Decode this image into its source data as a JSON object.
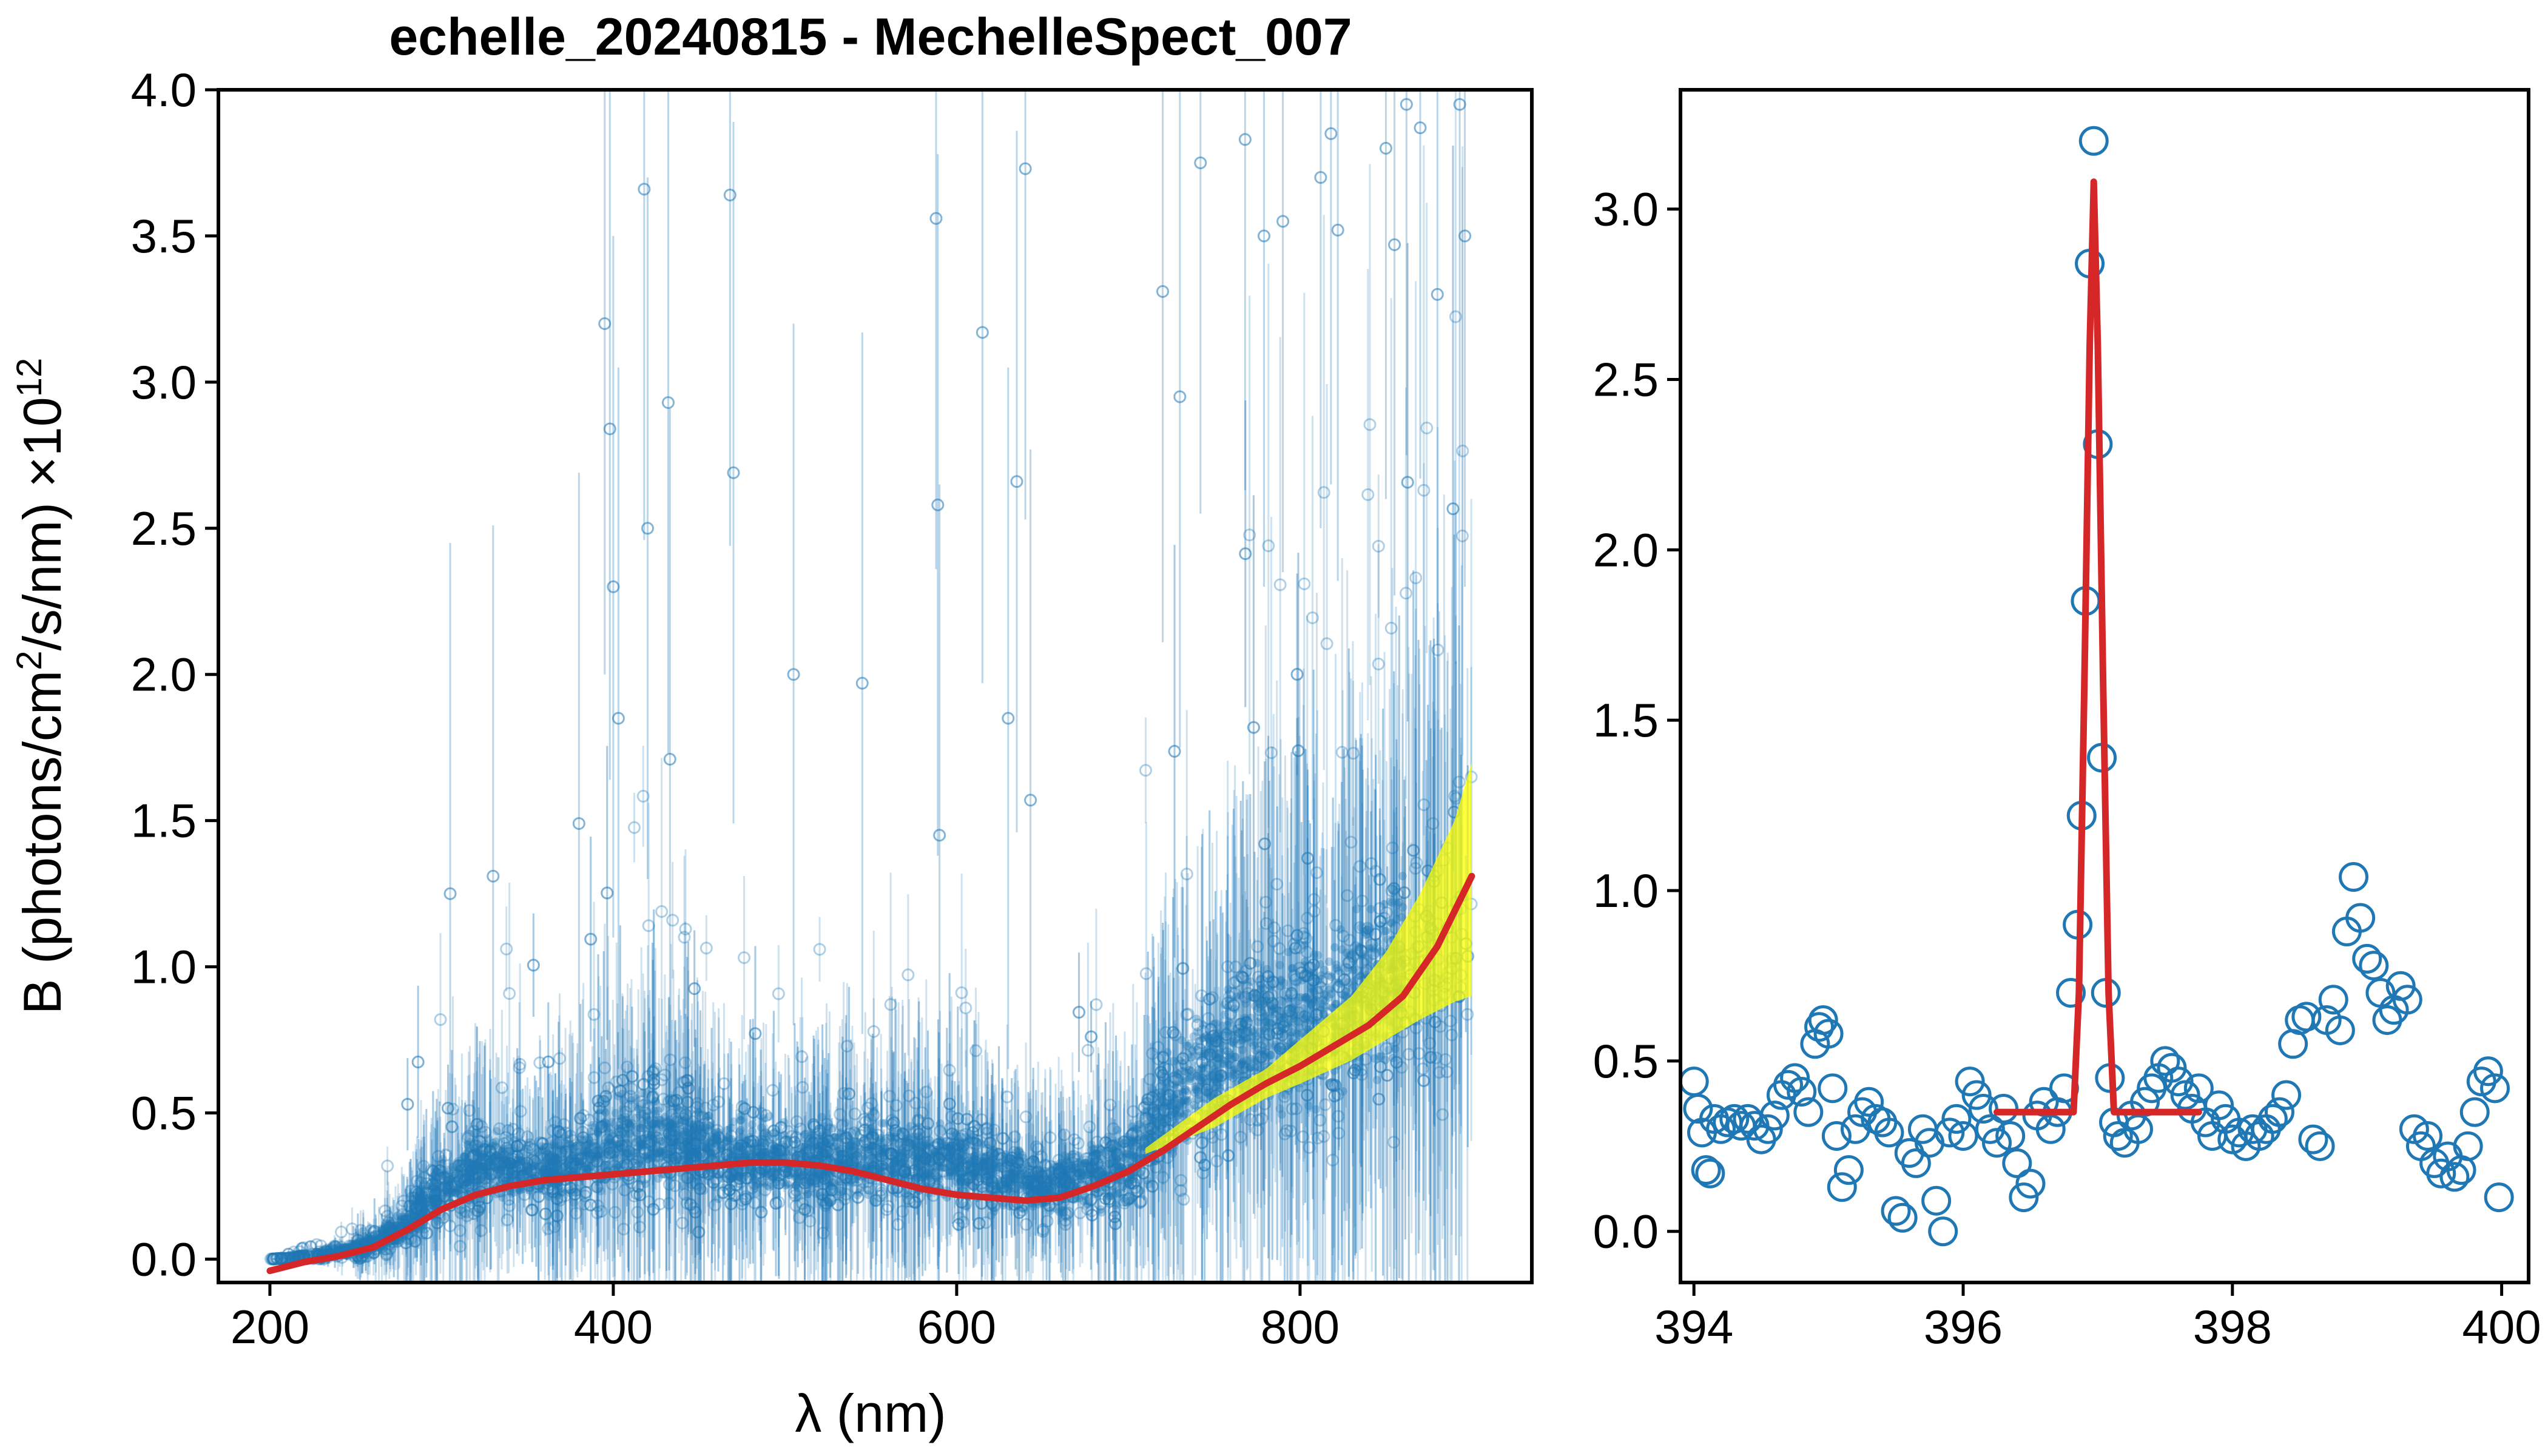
{
  "figure": {
    "title": "echelle_20240815 - MechelleSpect_007"
  },
  "colors": {
    "data": "#1f77b4",
    "fit": "#d62728",
    "band": "#ffff00",
    "axes": "#000000"
  },
  "chart_data": [
    {
      "type": "scatter",
      "title": "echelle_20240815 - MechelleSpect_007",
      "xlabel": "λ (nm)",
      "ylabel": "B (photons/cm²/s/nm) ×10¹²",
      "ylabel_parts": {
        "a": "B (photons/cm",
        "b": "2",
        "c": "/s/nm) ×10",
        "d": "12"
      },
      "xlim": [
        170,
        935
      ],
      "ylim": [
        -0.08,
        4.0
      ],
      "xticks": [
        200,
        400,
        600,
        800
      ],
      "xtick_labels": [
        "200",
        "400",
        "600",
        "800"
      ],
      "yticks": [
        0.0,
        0.5,
        1.0,
        1.5,
        2.0,
        2.5,
        3.0,
        3.5,
        4.0
      ],
      "ytick_labels": [
        "0.0",
        "0.5",
        "1.0",
        "1.5",
        "2.0",
        "2.5",
        "3.0",
        "3.5",
        "4.0"
      ],
      "series": [
        {
          "kind": "measured spectrum with vertical error bars (dense, semi-transparent markers)",
          "color": "#1f77b4",
          "envelope": {
            "x": [
              200,
              230,
              260,
              280,
              300,
              330,
              350,
              380,
              400,
              430,
              450,
              500,
              550,
              600,
              650,
              700,
              720,
              750,
              780,
              800,
              830,
              860,
              880,
              900
            ],
            "median": [
              0.0,
              0.01,
              0.05,
              0.12,
              0.25,
              0.32,
              0.3,
              0.33,
              0.4,
              0.42,
              0.38,
              0.33,
              0.35,
              0.33,
              0.25,
              0.32,
              0.5,
              0.65,
              0.78,
              0.8,
              0.88,
              1.0,
              1.1,
              1.2
            ],
            "spread": [
              0.0,
              0.02,
              0.08,
              0.15,
              0.25,
              0.3,
              0.22,
              0.3,
              0.38,
              0.4,
              0.32,
              0.28,
              0.32,
              0.3,
              0.22,
              0.32,
              0.45,
              0.55,
              0.65,
              0.7,
              0.75,
              0.8,
              0.85,
              0.9
            ]
          },
          "outliers": [
            [
              305,
              1.25
            ],
            [
              330,
              1.31
            ],
            [
              380,
              1.49
            ],
            [
              395,
              3.2
            ],
            [
              398,
              2.84
            ],
            [
              400,
              2.3
            ],
            [
              403,
              1.85
            ],
            [
              418,
              3.66
            ],
            [
              420,
              2.5
            ],
            [
              432,
              2.93
            ],
            [
              433,
              1.71
            ],
            [
              468,
              3.64
            ],
            [
              470,
              2.69
            ],
            [
              505,
              2.0
            ],
            [
              545,
              1.97
            ],
            [
              588,
              3.56
            ],
            [
              589,
              2.58
            ],
            [
              590,
              1.45
            ],
            [
              615,
              3.17
            ],
            [
              630,
              1.85
            ],
            [
              635,
              2.66
            ],
            [
              640,
              3.73
            ],
            [
              643,
              1.57
            ],
            [
              720,
              3.31
            ],
            [
              730,
              2.95
            ],
            [
              742,
              3.75
            ],
            [
              768,
              3.83
            ],
            [
              779,
              3.5
            ],
            [
              790,
              3.55
            ],
            [
              812,
              3.7
            ],
            [
              818,
              3.85
            ],
            [
              822,
              3.52
            ],
            [
              850,
              3.8
            ],
            [
              855,
              3.47
            ],
            [
              862,
              3.95
            ],
            [
              870,
              3.87
            ],
            [
              880,
              3.3
            ],
            [
              893,
              3.95
            ],
            [
              896,
              3.5
            ]
          ]
        },
        {
          "kind": "uncertainty band of fit",
          "color": "#ffff00",
          "x": [
            710,
            750,
            780,
            800,
            830,
            850,
            870,
            890,
            900
          ],
          "lower": [
            0.36,
            0.45,
            0.55,
            0.6,
            0.68,
            0.75,
            0.82,
            0.88,
            0.9
          ],
          "upper": [
            0.38,
            0.55,
            0.65,
            0.75,
            0.9,
            1.05,
            1.25,
            1.5,
            1.7
          ]
        },
        {
          "kind": "fitted continuum curve",
          "color": "#d62728",
          "x": [
            200,
            220,
            240,
            260,
            280,
            300,
            320,
            340,
            360,
            380,
            400,
            420,
            440,
            460,
            480,
            500,
            520,
            540,
            560,
            580,
            600,
            620,
            640,
            660,
            680,
            700,
            720,
            740,
            760,
            780,
            800,
            820,
            840,
            860,
            880,
            900
          ],
          "y": [
            -0.04,
            -0.01,
            0.01,
            0.04,
            0.1,
            0.17,
            0.22,
            0.25,
            0.27,
            0.28,
            0.29,
            0.3,
            0.31,
            0.32,
            0.33,
            0.33,
            0.32,
            0.3,
            0.27,
            0.24,
            0.22,
            0.21,
            0.2,
            0.21,
            0.25,
            0.3,
            0.37,
            0.45,
            0.53,
            0.6,
            0.66,
            0.73,
            0.8,
            0.9,
            1.07,
            1.31
          ]
        }
      ]
    },
    {
      "type": "scatter",
      "title": "",
      "xlabel": "",
      "ylabel": "",
      "xlim": [
        393.9,
        400.2
      ],
      "ylim": [
        -0.15,
        3.35
      ],
      "xticks": [
        394,
        396,
        398,
        400
      ],
      "xtick_labels": [
        "394",
        "396",
        "398",
        "400"
      ],
      "yticks": [
        0.0,
        0.5,
        1.0,
        1.5,
        2.0,
        2.5,
        3.0
      ],
      "ytick_labels": [
        "0.0",
        "0.5",
        "1.0",
        "1.5",
        "2.0",
        "2.5",
        "3.0"
      ],
      "series": [
        {
          "kind": "measured points (open circles)",
          "color": "#1f77b4",
          "x": [
            394.0,
            394.03,
            394.06,
            394.09,
            394.12,
            394.15,
            394.2,
            394.25,
            394.3,
            394.35,
            394.4,
            394.45,
            394.5,
            394.55,
            394.6,
            394.65,
            394.7,
            394.75,
            394.8,
            394.85,
            394.9,
            394.93,
            394.96,
            395.0,
            395.03,
            395.06,
            395.1,
            395.15,
            395.2,
            395.25,
            395.3,
            395.35,
            395.4,
            395.45,
            395.5,
            395.55,
            395.6,
            395.65,
            395.7,
            395.75,
            395.8,
            395.85,
            395.9,
            395.95,
            396.0,
            396.05,
            396.1,
            396.15,
            396.2,
            396.25,
            396.3,
            396.35,
            396.4,
            396.45,
            396.5,
            396.55,
            396.6,
            396.65,
            396.7,
            396.75,
            396.8,
            396.85,
            396.88,
            396.91,
            396.94,
            396.97,
            397.0,
            397.03,
            397.06,
            397.09,
            397.12,
            397.15,
            397.2,
            397.25,
            397.3,
            397.35,
            397.4,
            397.45,
            397.5,
            397.55,
            397.6,
            397.65,
            397.7,
            397.75,
            397.8,
            397.85,
            397.9,
            397.95,
            398.0,
            398.05,
            398.1,
            398.15,
            398.2,
            398.25,
            398.3,
            398.35,
            398.4,
            398.45,
            398.5,
            398.55,
            398.6,
            398.65,
            398.7,
            398.75,
            398.8,
            398.85,
            398.9,
            398.95,
            399.0,
            399.05,
            399.1,
            399.15,
            399.2,
            399.25,
            399.3,
            399.35,
            399.4,
            399.45,
            399.5,
            399.55,
            399.6,
            399.65,
            399.7,
            399.75,
            399.8,
            399.85,
            399.9,
            399.95,
            399.98
          ],
          "y": [
            0.44,
            0.36,
            0.29,
            0.18,
            0.17,
            0.33,
            0.3,
            0.32,
            0.33,
            0.31,
            0.33,
            0.31,
            0.27,
            0.3,
            0.34,
            0.4,
            0.43,
            0.45,
            0.41,
            0.35,
            0.55,
            0.6,
            0.62,
            0.58,
            0.42,
            0.28,
            0.13,
            0.18,
            0.3,
            0.35,
            0.38,
            0.33,
            0.32,
            0.29,
            0.06,
            0.04,
            0.23,
            0.2,
            0.3,
            0.26,
            0.09,
            0.0,
            0.29,
            0.33,
            0.28,
            0.44,
            0.4,
            0.36,
            0.3,
            0.26,
            0.36,
            0.28,
            0.2,
            0.1,
            0.14,
            0.34,
            0.38,
            0.3,
            0.35,
            0.42,
            0.7,
            0.9,
            1.22,
            1.85,
            2.84,
            3.2,
            2.31,
            1.39,
            0.7,
            0.45,
            0.32,
            0.28,
            0.26,
            0.34,
            0.3,
            0.38,
            0.42,
            0.45,
            0.5,
            0.48,
            0.44,
            0.4,
            0.36,
            0.42,
            0.32,
            0.28,
            0.37,
            0.33,
            0.27,
            0.29,
            0.25,
            0.3,
            0.28,
            0.3,
            0.33,
            0.35,
            0.4,
            0.55,
            0.62,
            0.63,
            0.27,
            0.25,
            0.62,
            0.68,
            0.59,
            0.88,
            1.04,
            0.92,
            0.8,
            0.78,
            0.7,
            0.62,
            0.65,
            0.72,
            0.68,
            0.3,
            0.25,
            0.28,
            0.2,
            0.17,
            0.22,
            0.16,
            0.18,
            0.25,
            0.35,
            0.44,
            0.47,
            0.42,
            0.1
          ]
        },
        {
          "kind": "Gaussian line fit",
          "color": "#d62728",
          "x": [
            396.25,
            396.82,
            396.86,
            396.9,
            396.94,
            396.97,
            397.0,
            397.04,
            397.08,
            397.12,
            397.75
          ],
          "y": [
            0.35,
            0.35,
            0.7,
            1.6,
            2.6,
            3.08,
            2.6,
            1.6,
            0.7,
            0.35,
            0.35
          ]
        }
      ]
    }
  ]
}
